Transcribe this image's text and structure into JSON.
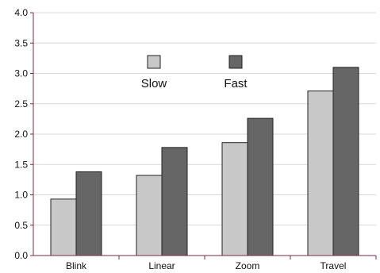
{
  "chart_data": {
    "type": "bar",
    "title": "",
    "xlabel": "",
    "ylabel": "",
    "categories": [
      "Blink",
      "Linear",
      "Zoom",
      "Travel"
    ],
    "series": [
      {
        "name": "Slow",
        "values": [
          0.93,
          1.32,
          1.86,
          2.71
        ],
        "color": "#c8c8c8"
      },
      {
        "name": "Fast",
        "values": [
          1.38,
          1.78,
          2.26,
          3.1
        ],
        "color": "#666666"
      }
    ],
    "ylim": [
      0,
      4.0
    ],
    "yticks": [
      "0.0",
      "0.5",
      "1.0",
      "1.5",
      "2.0",
      "2.5",
      "3.0",
      "3.5",
      "4.0"
    ],
    "grid": true,
    "legend_position": "top-center",
    "axis_color": "#7a2a4a",
    "grid_color": "#d8d8d8",
    "bar_edge_color": "#222222"
  }
}
